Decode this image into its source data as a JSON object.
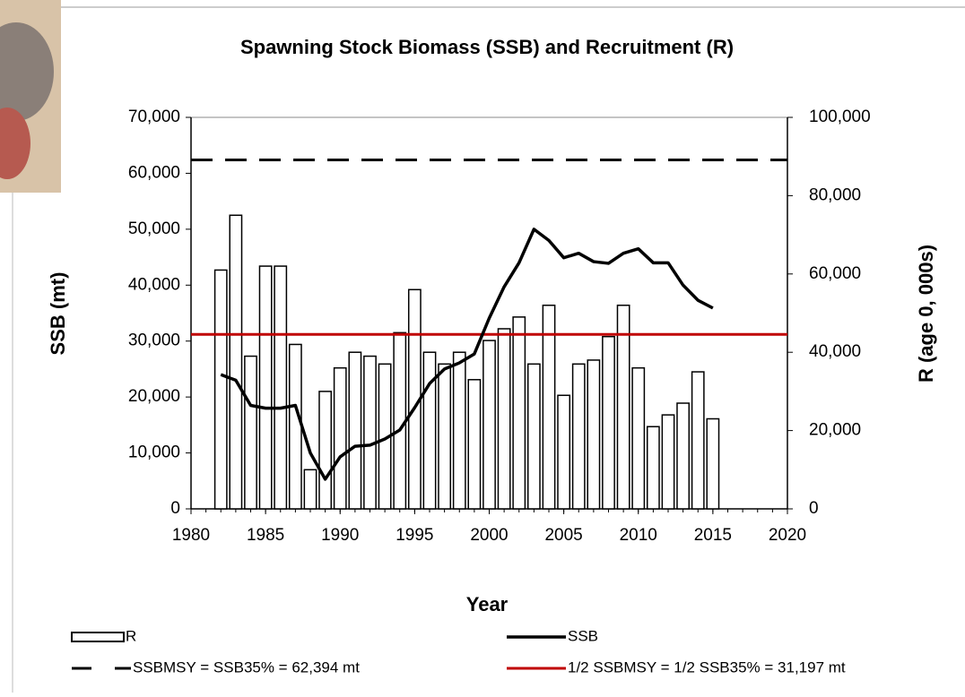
{
  "chart_data": {
    "type": "bar-line",
    "title": "Spawning Stock Biomass (SSB) and Recruitment (R)",
    "x_label": "Year",
    "y_label": "SSB (mt)",
    "y2_label": "R (age 0, 000s)",
    "xlim": [
      1980,
      2020
    ],
    "xticks": [
      1980,
      1985,
      1990,
      1995,
      2000,
      2005,
      2010,
      2015,
      2020
    ],
    "ylim": [
      0,
      70000
    ],
    "yticks": [
      0,
      {
        "value": 10000,
        "label": "10,000"
      },
      {
        "value": 20000,
        "label": "20,000"
      },
      {
        "value": 30000,
        "label": "30,000"
      },
      {
        "value": 40000,
        "label": "40,000"
      },
      {
        "value": 50000,
        "label": "50,000"
      },
      {
        "value": 60000,
        "label": "60,000"
      },
      {
        "value": 70000,
        "label": "70,000"
      }
    ],
    "y2lim": [
      0,
      100000
    ],
    "y2ticks": [
      0,
      {
        "value": 20000,
        "label": "20,000"
      },
      {
        "value": 40000,
        "label": "40,000"
      },
      {
        "value": 60000,
        "label": "60,000"
      },
      {
        "value": 80000,
        "label": "80,000"
      },
      {
        "value": 100000,
        "label": "100,000"
      }
    ],
    "x": [
      1982,
      1983,
      1984,
      1985,
      1986,
      1987,
      1988,
      1989,
      1990,
      1991,
      1992,
      1993,
      1994,
      1995,
      1996,
      1997,
      1998,
      1999,
      2000,
      2001,
      2002,
      2003,
      2004,
      2005,
      2006,
      2007,
      2008,
      2009,
      2010,
      2011,
      2012,
      2013,
      2014,
      2015
    ],
    "series": [
      {
        "name": "R",
        "kind": "bar",
        "axis": "y2",
        "color": "#ffffff",
        "values": [
          61000,
          75000,
          39000,
          62000,
          62000,
          42000,
          10000,
          30000,
          36000,
          40000,
          39000,
          37000,
          45000,
          56000,
          40000,
          37000,
          40000,
          33000,
          43000,
          46000,
          49000,
          37000,
          52000,
          29000,
          37000,
          38000,
          44000,
          52000,
          36000,
          21000,
          24000,
          27000,
          35000,
          23000
        ]
      },
      {
        "name": "SSB",
        "kind": "line",
        "color": "#000000",
        "values": [
          24000,
          23000,
          18500,
          18000,
          18000,
          18500,
          10000,
          5300,
          9300,
          11200,
          11400,
          12500,
          14100,
          18100,
          22400,
          25000,
          26100,
          27700,
          34100,
          39700,
          44000,
          50000,
          48000,
          44900,
          45700,
          44200,
          43900,
          45700,
          46500,
          44000,
          44000,
          40000,
          37300,
          35900
        ]
      }
    ],
    "reference_lines": [
      {
        "name": "SSBMSY = SSB35% = 62,394 mt",
        "value": 62394,
        "color": "#000000",
        "dashed": true
      },
      {
        "name": "1/2 SSBMSY = 1/2 SSB35%  = 31,197 mt",
        "value": 31197,
        "color": "#c00000",
        "dashed": false
      }
    ],
    "legend": "bottom"
  }
}
